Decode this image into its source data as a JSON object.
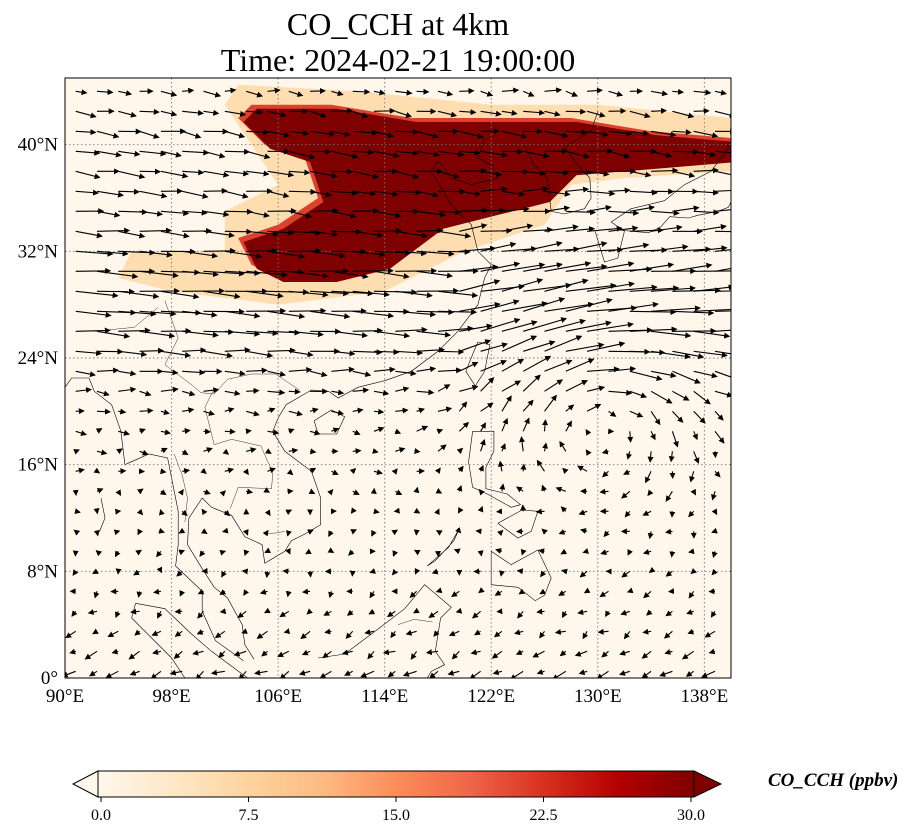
{
  "title_line1": "CO_CCH at 4km",
  "title_line2": "Time: 2024-02-21 19:00:00",
  "colorbar_title": "CO_CCH (ppbv)",
  "chart_data": {
    "type": "heatmap",
    "lon_range": [
      90,
      140
    ],
    "lat_range": [
      0,
      45
    ],
    "x_ticks": [
      90,
      98,
      106,
      114,
      122,
      130,
      138
    ],
    "x_tick_labels": [
      "90°E",
      "98°E",
      "106°E",
      "114°E",
      "122°E",
      "130°E",
      "138°E"
    ],
    "y_ticks": [
      0,
      8,
      16,
      24,
      32,
      40
    ],
    "y_tick_labels": [
      "0°",
      "8°N",
      "16°N",
      "24°N",
      "32°N",
      "40°N"
    ],
    "grid": true,
    "colormap": "OrRd",
    "colorbar": {
      "orientation": "horizontal",
      "extend": "both",
      "range": [
        0.0,
        30.0
      ],
      "ticks": [
        0.0,
        7.5,
        15.0,
        22.5,
        30.0
      ],
      "tick_labels": [
        "0.0",
        "7.5",
        "15.0",
        "22.5",
        "30.0"
      ],
      "colors": [
        "#fff7ec",
        "#fee8c8",
        "#fdd49e",
        "#fdbb84",
        "#fc8d59",
        "#ef6548",
        "#d7301f",
        "#b30000",
        "#7f0000"
      ]
    },
    "plume": {
      "max_value": 30,
      "core_polygon": [
        [
          104,
          43
        ],
        [
          110,
          43
        ],
        [
          116,
          42
        ],
        [
          122,
          42
        ],
        [
          128,
          42
        ],
        [
          134,
          41
        ],
        [
          140,
          40.5
        ],
        [
          140,
          39
        ],
        [
          134,
          38.5
        ],
        [
          128,
          38
        ],
        [
          126,
          36
        ],
        [
          122,
          35
        ],
        [
          118,
          34
        ],
        [
          114,
          31
        ],
        [
          110,
          30
        ],
        [
          106,
          30
        ],
        [
          104,
          31
        ],
        [
          103,
          33
        ],
        [
          106,
          34
        ],
        [
          109,
          36
        ],
        [
          108,
          39
        ],
        [
          105,
          40
        ],
        [
          103,
          42
        ]
      ],
      "halo_polygon": [
        [
          103,
          44.5
        ],
        [
          112,
          44
        ],
        [
          122,
          43
        ],
        [
          130,
          43
        ],
        [
          140,
          42
        ],
        [
          140,
          38
        ],
        [
          132,
          37.5
        ],
        [
          128,
          37
        ],
        [
          126,
          34
        ],
        [
          120,
          32
        ],
        [
          114,
          29
        ],
        [
          106,
          28
        ],
        [
          98,
          29
        ],
        [
          94,
          30
        ],
        [
          95,
          32
        ],
        [
          102,
          32
        ],
        [
          102,
          35
        ],
        [
          106,
          37
        ],
        [
          104,
          40
        ],
        [
          102,
          43
        ]
      ]
    },
    "wind_vectors": "dense field: strong westerly jet from 20-36N across 90-140E, anticyclonic circulation over Philippine Sea, weak flow in tropics"
  }
}
